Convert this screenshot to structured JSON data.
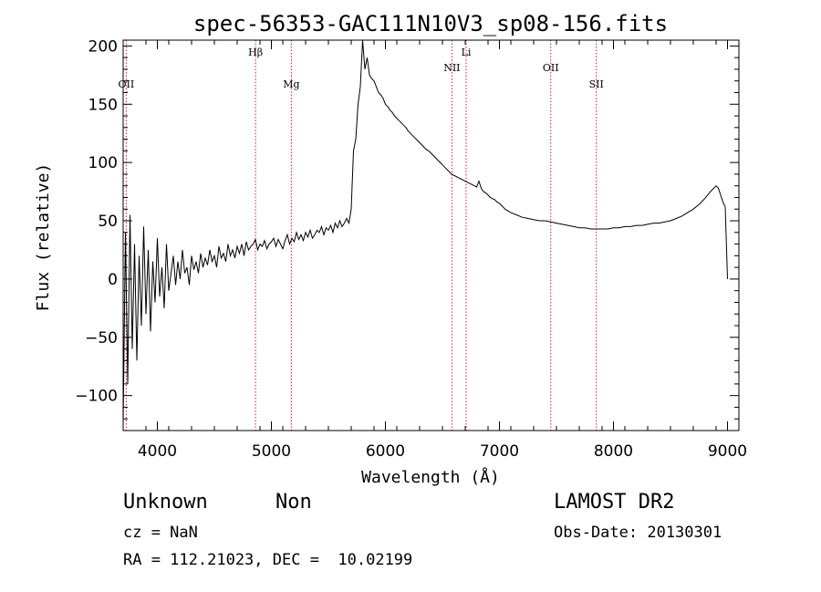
{
  "chart_data": {
    "type": "line",
    "title": "spec-56353-GAC111N10V3_sp08-156.fits",
    "xlabel": "Wavelength (Å)",
    "ylabel": "Flux (relative)",
    "xlim": [
      3700,
      9100
    ],
    "ylim": [
      -130,
      205
    ],
    "xticks": [
      4000,
      5000,
      6000,
      7000,
      8000,
      9000
    ],
    "xtick_labels": [
      "4000",
      "5000",
      "6000",
      "7000",
      "8000",
      "9000"
    ],
    "yticks": [
      -100,
      -50,
      0,
      50,
      100,
      150,
      200
    ],
    "ytick_labels": [
      "−100",
      "−50",
      "0",
      "50",
      "100",
      "150",
      "200"
    ],
    "grid": false,
    "line_color": "#000000",
    "marker_color": "#cc2222",
    "spectral_lines": [
      {
        "label": "OII",
        "wavelength": 3727,
        "label_level": "low"
      },
      {
        "label": "Hβ",
        "wavelength": 4861,
        "label_level": "high"
      },
      {
        "label": "Mg",
        "wavelength": 5175,
        "label_level": "low"
      },
      {
        "label": "NII",
        "wavelength": 6583,
        "label_level": "mid"
      },
      {
        "label": "Li",
        "wavelength": 6708,
        "label_level": "high"
      },
      {
        "label": "OII",
        "wavelength": 7450,
        "label_level": "mid"
      },
      {
        "label": "SII",
        "wavelength": 7850,
        "label_level": "low"
      }
    ],
    "series": [
      {
        "x": [
          3700,
          3720,
          3740,
          3760,
          3780,
          3800,
          3820,
          3840,
          3860,
          3880,
          3900,
          3920,
          3940,
          3960,
          3980,
          4000,
          4020,
          4040,
          4060,
          4080,
          4100,
          4120,
          4140,
          4160,
          4180,
          4200,
          4220,
          4240,
          4260,
          4280,
          4300,
          4320,
          4340,
          4360,
          4380,
          4400,
          4420,
          4440,
          4460,
          4480,
          4500,
          4520,
          4540,
          4560,
          4580,
          4600,
          4620,
          4640,
          4660,
          4680,
          4700,
          4720,
          4740,
          4760,
          4780,
          4800,
          4820,
          4840,
          4860,
          4880,
          4900,
          4920,
          4940,
          4960,
          4980,
          5000,
          5020,
          5040,
          5060,
          5080,
          5100,
          5120,
          5140,
          5160,
          5180,
          5200,
          5220,
          5240,
          5260,
          5280,
          5300,
          5320,
          5340,
          5360,
          5380,
          5400,
          5420,
          5440,
          5460,
          5480,
          5500,
          5520,
          5540,
          5560,
          5580,
          5600,
          5620,
          5640,
          5660,
          5680,
          5700,
          5720,
          5740,
          5760,
          5780,
          5800,
          5820,
          5840,
          5860,
          5880,
          5900,
          5920,
          5940,
          5960,
          5980,
          6000,
          6020,
          6040,
          6060,
          6080,
          6100,
          6120,
          6140,
          6160,
          6180,
          6200,
          6220,
          6240,
          6260,
          6280,
          6300,
          6320,
          6340,
          6360,
          6380,
          6400,
          6420,
          6440,
          6460,
          6480,
          6500,
          6520,
          6540,
          6560,
          6580,
          6600,
          6620,
          6640,
          6660,
          6680,
          6700,
          6720,
          6740,
          6760,
          6780,
          6800,
          6820,
          6840,
          6860,
          6880,
          6900,
          6920,
          6940,
          6960,
          6980,
          7000,
          7050,
          7100,
          7150,
          7200,
          7250,
          7300,
          7350,
          7400,
          7450,
          7500,
          7550,
          7600,
          7650,
          7700,
          7750,
          7800,
          7850,
          7900,
          7950,
          8000,
          8050,
          8100,
          8150,
          8200,
          8250,
          8300,
          8350,
          8400,
          8450,
          8500,
          8550,
          8600,
          8650,
          8700,
          8750,
          8800,
          8850,
          8900,
          8920,
          8940,
          8960,
          8980,
          9000
        ],
        "y": [
          -125,
          40,
          -90,
          55,
          -60,
          30,
          -70,
          20,
          -40,
          45,
          -30,
          25,
          -45,
          15,
          -20,
          35,
          -15,
          10,
          -25,
          30,
          -10,
          5,
          20,
          -5,
          15,
          0,
          25,
          5,
          10,
          -5,
          20,
          8,
          15,
          5,
          22,
          10,
          18,
          12,
          25,
          15,
          20,
          10,
          28,
          18,
          22,
          15,
          30,
          20,
          25,
          18,
          28,
          22,
          30,
          20,
          32,
          25,
          28,
          30,
          34,
          25,
          30,
          28,
          33,
          26,
          30,
          32,
          35,
          28,
          34,
          30,
          26,
          33,
          38,
          30,
          35,
          32,
          40,
          34,
          38,
          33,
          40,
          36,
          42,
          35,
          38,
          42,
          40,
          45,
          38,
          44,
          42,
          46,
          40,
          48,
          44,
          50,
          45,
          48,
          52,
          48,
          60,
          110,
          120,
          150,
          165,
          205,
          180,
          190,
          175,
          172,
          170,
          165,
          160,
          158,
          155,
          150,
          148,
          145,
          143,
          140,
          138,
          136,
          134,
          132,
          130,
          127,
          125,
          123,
          121,
          119,
          117,
          115,
          113,
          111,
          110,
          108,
          106,
          104,
          102,
          100,
          98,
          96,
          94,
          92,
          90,
          89,
          88,
          87,
          86,
          85,
          84,
          83,
          82,
          81,
          80,
          79,
          84,
          78,
          75,
          74,
          72,
          70,
          69,
          68,
          66,
          65,
          60,
          57,
          55,
          53,
          52,
          51,
          50,
          50,
          49,
          48,
          47,
          46,
          45,
          44,
          44,
          43,
          43,
          43,
          43,
          44,
          44,
          45,
          45,
          46,
          46,
          47,
          48,
          48,
          49,
          50,
          52,
          54,
          57,
          60,
          64,
          69,
          75,
          80,
          78,
          72,
          66,
          62,
          0
        ]
      }
    ]
  },
  "info": {
    "class_label": "Unknown",
    "subclass_label": "Non",
    "survey": "LAMOST DR2",
    "cz": "cz = NaN",
    "obs_date": "Obs-Date: 20130301",
    "coords": "RA = 112.21023, DEC =  10.02199"
  }
}
